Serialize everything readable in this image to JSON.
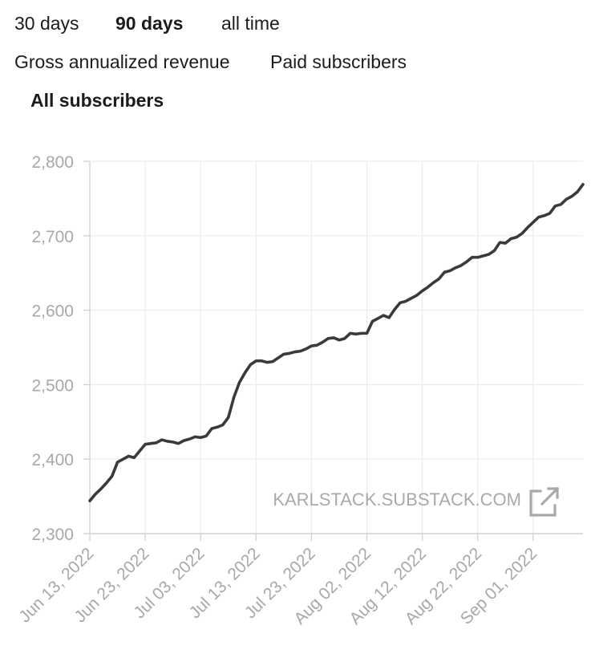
{
  "range_tabs": [
    {
      "label": "30 days",
      "active": false
    },
    {
      "label": "90 days",
      "active": true
    },
    {
      "label": "all time",
      "active": false
    }
  ],
  "metric_tabs": [
    {
      "label": "Gross annualized revenue",
      "active": false
    },
    {
      "label": "Paid subscribers",
      "active": false
    },
    {
      "label": "All subscribers",
      "active": true
    }
  ],
  "watermark": {
    "label": "KARLSTACK.SUBSTACK.COM",
    "icon": "external-link-icon"
  },
  "colors": {
    "line": "#3a3a3a",
    "grid": "#ececec",
    "axis_text": "#a8a8a8",
    "watermark": "#a9a9a9"
  },
  "chart_data": {
    "type": "line",
    "title": "All subscribers",
    "xlabel": "",
    "ylabel": "",
    "ylim": [
      2300,
      2800
    ],
    "yticks": [
      2300,
      2400,
      2500,
      2600,
      2700,
      2800
    ],
    "ytick_labels": [
      "2,300",
      "2,400",
      "2,500",
      "2,600",
      "2,700",
      "2,800"
    ],
    "xlim": [
      0,
      89
    ],
    "xticks": [
      0,
      10,
      20,
      30,
      40,
      50,
      60,
      70,
      80
    ],
    "xtick_labels": [
      "Jun 13, 2022",
      "Jun 23, 2022",
      "Jul 03, 2022",
      "Jul 13, 2022",
      "Jul 23, 2022",
      "Aug 02, 2022",
      "Aug 12, 2022",
      "Aug 22, 2022",
      "Sep 01, 2022"
    ],
    "grid": true,
    "series": [
      {
        "name": "All subscribers",
        "x": [
          0,
          1,
          2,
          3,
          4,
          5,
          6,
          7,
          8,
          9,
          10,
          11,
          12,
          13,
          14,
          15,
          16,
          17,
          18,
          19,
          20,
          21,
          22,
          23,
          24,
          25,
          26,
          27,
          28,
          29,
          30,
          31,
          32,
          33,
          34,
          35,
          36,
          37,
          38,
          39,
          40,
          41,
          42,
          43,
          44,
          45,
          46,
          47,
          48,
          49,
          50,
          51,
          52,
          53,
          54,
          55,
          56,
          57,
          58,
          59,
          60,
          61,
          62,
          63,
          64,
          65,
          66,
          67,
          68,
          69,
          70,
          71,
          72,
          73,
          74,
          75,
          76,
          77,
          78,
          79,
          80,
          81,
          82,
          83,
          84,
          85,
          86,
          87,
          88,
          89
        ],
        "values": [
          2344,
          2353,
          2360,
          2368,
          2377,
          2396,
          2400,
          2404,
          2402,
          2411,
          2420,
          2421,
          2422,
          2426,
          2424,
          2423,
          2421,
          2425,
          2427,
          2430,
          2429,
          2431,
          2441,
          2443,
          2446,
          2456,
          2483,
          2503,
          2516,
          2527,
          2532,
          2532,
          2530,
          2531,
          2536,
          2541,
          2542,
          2544,
          2545,
          2548,
          2552,
          2553,
          2557,
          2562,
          2563,
          2560,
          2562,
          2569,
          2568,
          2569,
          2569,
          2585,
          2589,
          2593,
          2590,
          2601,
          2610,
          2612,
          2616,
          2620,
          2626,
          2631,
          2637,
          2642,
          2651,
          2653,
          2657,
          2660,
          2665,
          2671,
          2671,
          2673,
          2675,
          2680,
          2691,
          2690,
          2696,
          2698,
          2703,
          2711,
          2718,
          2725,
          2727,
          2730,
          2740,
          2742,
          2749,
          2753,
          2759,
          2769
        ]
      }
    ]
  }
}
